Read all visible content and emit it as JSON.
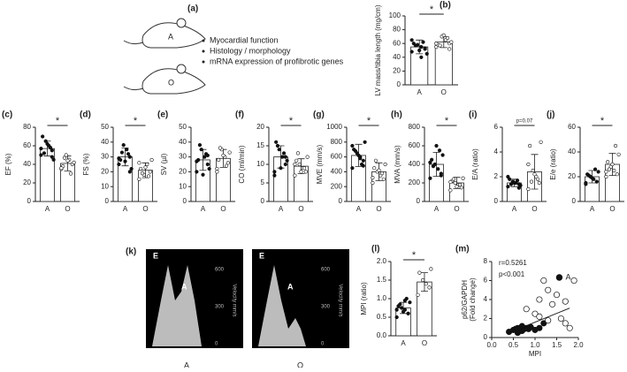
{
  "figure": {
    "a": {
      "panel": "(a)",
      "mouse_a": "A",
      "mouse_o": "O",
      "bullets": [
        "Myocardial function",
        "Histology / morphology",
        "mRNA expression of profibrotic genes"
      ]
    },
    "k": {
      "panel": "(k)",
      "peak_e": "E",
      "peak_a": "A",
      "ticks": [
        "600",
        "300",
        "0"
      ],
      "axis": "Velocity mm/s",
      "captions": [
        "A",
        "O"
      ]
    }
  },
  "chart_data": [
    {
      "type": "bar",
      "panel": "(b)",
      "ylabel": "LV mass/tibia length (mg/cm)",
      "categories": [
        "A",
        "O"
      ],
      "values": [
        55,
        62
      ],
      "errors": [
        10,
        8
      ],
      "points": [
        [
          48,
          52,
          55,
          58,
          60,
          45,
          62,
          50,
          57,
          65,
          53,
          40
        ],
        [
          55,
          60,
          65,
          70,
          58,
          62,
          68,
          72,
          57,
          60,
          52
        ]
      ],
      "point_styles": [
        "filled",
        "open"
      ],
      "ylim": [
        0,
        100
      ],
      "yticks": [
        0,
        20,
        40,
        60,
        80,
        100
      ],
      "annotation": "*"
    },
    {
      "type": "bar",
      "panel": "(c)",
      "ylabel": "EF (%)",
      "categories": [
        "A",
        "O"
      ],
      "values": [
        57,
        41
      ],
      "errors": [
        8,
        8
      ],
      "points": [
        [
          50,
          55,
          60,
          65,
          70,
          45,
          58,
          62,
          52,
          57,
          48
        ],
        [
          35,
          40,
          45,
          50,
          38,
          42,
          30,
          44,
          47,
          36
        ]
      ],
      "point_styles": [
        "filled",
        "open"
      ],
      "ylim": [
        0,
        80
      ],
      "yticks": [
        0,
        20,
        40,
        60,
        80
      ],
      "annotation": "*"
    },
    {
      "type": "bar",
      "panel": "(d)",
      "ylabel": "FS (%)",
      "categories": [
        "A",
        "O"
      ],
      "values": [
        30,
        21
      ],
      "errors": [
        6,
        5
      ],
      "points": [
        [
          25,
          30,
          35,
          38,
          28,
          22,
          32,
          27,
          33,
          29,
          20
        ],
        [
          15,
          20,
          25,
          18,
          22,
          28,
          17,
          23,
          19,
          26
        ]
      ],
      "point_styles": [
        "filled",
        "open"
      ],
      "ylim": [
        0,
        50
      ],
      "yticks": [
        0,
        10,
        20,
        30,
        40,
        50
      ],
      "annotation": "*"
    },
    {
      "type": "bar",
      "panel": "(e)",
      "ylabel": "SV (µl)",
      "categories": [
        "A",
        "O"
      ],
      "values": [
        28,
        29
      ],
      "errors": [
        7,
        6
      ],
      "points": [
        [
          20,
          25,
          30,
          35,
          28,
          22,
          32,
          18,
          38,
          27,
          31
        ],
        [
          22,
          26,
          30,
          35,
          28,
          33,
          24,
          31,
          36,
          20
        ]
      ],
      "point_styles": [
        "filled",
        "open"
      ],
      "ylim": [
        0,
        50
      ],
      "yticks": [
        0,
        10,
        20,
        30,
        40,
        50
      ]
    },
    {
      "type": "bar",
      "panel": "(f)",
      "ylabel": "CO (ml/min)",
      "categories": [
        "A",
        "O"
      ],
      "values": [
        12,
        9.5
      ],
      "errors": [
        3,
        2
      ],
      "points": [
        [
          8,
          10,
          12,
          14,
          16,
          11,
          13,
          9,
          15,
          7,
          12
        ],
        [
          7,
          8,
          9,
          10,
          11,
          12,
          9,
          8,
          13,
          10
        ]
      ],
      "point_styles": [
        "filled",
        "open"
      ],
      "ylim": [
        0,
        20
      ],
      "yticks": [
        0,
        5,
        10,
        15,
        20
      ],
      "annotation": "*"
    },
    {
      "type": "bar",
      "panel": "(g)",
      "ylabel": "MVE (mm/s)",
      "categories": [
        "A",
        "O"
      ],
      "values": [
        620,
        400
      ],
      "errors": [
        150,
        120
      ],
      "points": [
        [
          450,
          550,
          600,
          650,
          700,
          800,
          500,
          620,
          680,
          750,
          480,
          580
        ],
        [
          250,
          300,
          350,
          400,
          450,
          500,
          380,
          420,
          550,
          320
        ]
      ],
      "point_styles": [
        "filled",
        "open"
      ],
      "ylim": [
        0,
        1000
      ],
      "yticks": [
        0,
        200,
        400,
        600,
        800,
        1000
      ],
      "annotation": "*"
    },
    {
      "type": "bar",
      "panel": "(h)",
      "ylabel": "MVA (mm/s)",
      "categories": [
        "A",
        "O"
      ],
      "values": [
        400,
        200
      ],
      "errors": [
        130,
        60
      ],
      "points": [
        [
          250,
          300,
          350,
          400,
          450,
          500,
          550,
          600,
          380,
          420,
          280
        ],
        [
          120,
          150,
          180,
          200,
          220,
          250,
          180,
          160,
          240,
          210
        ]
      ],
      "point_styles": [
        "filled",
        "open"
      ],
      "ylim": [
        0,
        800
      ],
      "yticks": [
        0,
        200,
        400,
        600,
        800
      ],
      "annotation": "*"
    },
    {
      "type": "bar",
      "panel": "(i)",
      "ylabel": "E/A (ratio)",
      "categories": [
        "A",
        "O"
      ],
      "values": [
        1.5,
        2.4
      ],
      "errors": [
        0.3,
        1.4
      ],
      "points": [
        [
          1.2,
          1.4,
          1.5,
          1.6,
          1.8,
          1.3,
          1.7,
          1.5,
          1.4,
          2.0,
          1.1
        ],
        [
          1.0,
          1.5,
          2.0,
          2.5,
          4.5,
          4.8,
          1.8,
          2.2,
          1.6,
          3.0
        ]
      ],
      "point_styles": [
        "filled",
        "open"
      ],
      "ylim": [
        0,
        6
      ],
      "yticks": [
        0,
        2,
        4,
        6
      ],
      "annotation": "p=0.07"
    },
    {
      "type": "bar",
      "panel": "(j)",
      "ylabel": "E/e (ratio)",
      "categories": [
        "A",
        "O"
      ],
      "values": [
        20,
        30
      ],
      "errors": [
        5,
        9
      ],
      "points": [
        [
          14,
          16,
          18,
          20,
          22,
          24,
          26,
          19,
          21,
          15
        ],
        [
          20,
          22,
          25,
          28,
          32,
          38,
          45,
          30,
          26,
          24
        ]
      ],
      "point_styles": [
        "filled",
        "open"
      ],
      "ylim": [
        0,
        60
      ],
      "yticks": [
        0,
        20,
        40,
        60
      ],
      "annotation": "*"
    },
    {
      "type": "bar",
      "panel": "(l)",
      "ylabel": "MPI (ratio)",
      "categories": [
        "A",
        "O"
      ],
      "values": [
        0.75,
        1.45
      ],
      "errors": [
        0.15,
        0.25
      ],
      "points": [
        [
          0.5,
          0.6,
          0.7,
          0.75,
          0.8,
          0.9,
          1.0,
          0.65,
          0.85,
          0.7,
          0.6,
          0.95
        ],
        [
          1.1,
          1.3,
          1.4,
          1.5,
          1.7,
          1.8
        ]
      ],
      "point_styles": [
        "filled",
        "open"
      ],
      "ylim": [
        0,
        2
      ],
      "yticks": [
        {
          "value": 0,
          "label": "0.0"
        },
        0.5,
        {
          "value": 1,
          "label": "1.0"
        },
        1.5,
        {
          "value": 2,
          "label": "2.0"
        }
      ],
      "annotation": "*"
    },
    {
      "type": "scatter",
      "panel": "(m)",
      "xlabel": "MPI",
      "ylabel": [
        "p62/GAPDH",
        "(Fold change)"
      ],
      "annotations": [
        "r=0.5261",
        "p<0.001"
      ],
      "xlim": [
        0,
        2
      ],
      "xticks": [
        {
          "value": 0,
          "label": "0.0"
        },
        0.5,
        {
          "value": 1,
          "label": "1.0"
        },
        1.5,
        {
          "value": 2,
          "label": "2.0"
        }
      ],
      "ylim": [
        0,
        8
      ],
      "yticks": [
        0,
        2,
        4,
        6,
        8
      ],
      "series": [
        {
          "name": "A",
          "style": "filled",
          "x": [
            0.4,
            0.5,
            0.55,
            0.6,
            0.65,
            0.7,
            0.75,
            0.8,
            0.9,
            1.0,
            1.1,
            0.6,
            0.7,
            0.85,
            1.2
          ],
          "y": [
            0.6,
            0.8,
            0.9,
            1.0,
            0.7,
            1.2,
            0.9,
            1.0,
            1.1,
            0.8,
            1.0,
            0.5,
            0.7,
            0.9,
            1.5
          ]
        },
        {
          "style": "open",
          "x": [
            0.8,
            1.0,
            1.1,
            1.2,
            1.3,
            1.4,
            1.5,
            1.6,
            1.7,
            1.8,
            1.9,
            1.3,
            1.1,
            1.7
          ],
          "y": [
            3.0,
            2.5,
            4.0,
            6.0,
            5.0,
            3.5,
            4.5,
            2.0,
            1.5,
            1.0,
            6.0,
            1.8,
            2.2,
            3.8
          ]
        }
      ],
      "trendline": {
        "x": [
          0.4,
          1.8
        ],
        "y": [
          0.5,
          3.1
        ]
      }
    }
  ]
}
